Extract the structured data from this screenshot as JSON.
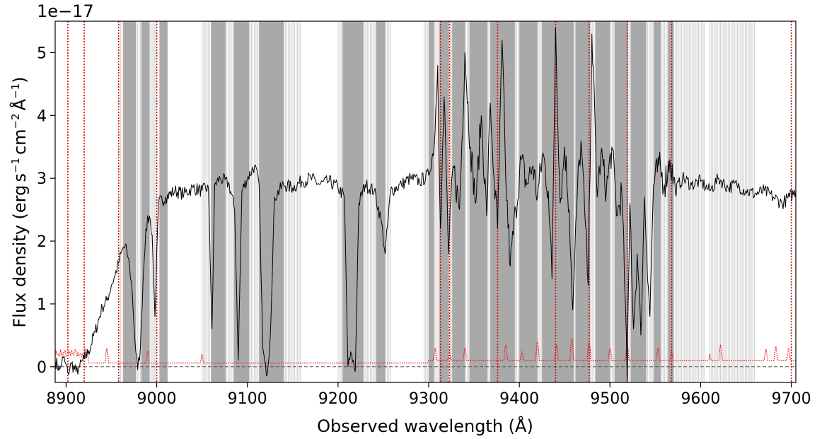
{
  "chart_data": {
    "type": "line",
    "title": "",
    "xlabel": "Observed wavelength (Å)",
    "ylabel": {
      "prefix": "Flux density (erg",
      "s": "s",
      "s_exp": "−1",
      "cm": "cm",
      "cm_exp": "−2",
      "ang": "Å",
      "ang_exp": "−1",
      "suffix": ")"
    },
    "y_offset_label": "1e−17",
    "xlim": [
      8888,
      9705
    ],
    "ylim": [
      -0.25,
      5.5
    ],
    "x_ticks": [
      8900,
      9000,
      9100,
      9200,
      9300,
      9400,
      9500,
      9600,
      9700
    ],
    "x_tick_labels": [
      "8900",
      "9000",
      "9100",
      "9200",
      "9300",
      "9400",
      "9500",
      "9600",
      "9700"
    ],
    "y_ticks": [
      0,
      1,
      2,
      3,
      4,
      5
    ],
    "y_tick_labels": [
      "0",
      "1",
      "2",
      "3",
      "4",
      "5"
    ],
    "grid": false,
    "legend": "none",
    "colors": {
      "flux": "#000000",
      "error": "#ee1111",
      "telluric_band": "#999999",
      "sky_line": "#dd0000",
      "zero_line": "#555555"
    },
    "gray_bands_dense": [
      [
        8963,
        8977
      ],
      [
        8983,
        8992
      ],
      [
        9003,
        9012
      ],
      [
        9060,
        9076
      ],
      [
        9085,
        9102
      ],
      [
        9113,
        9140
      ],
      [
        9205,
        9228
      ],
      [
        9242,
        9252
      ],
      [
        9300,
        9306
      ],
      [
        9312,
        9322
      ],
      [
        9326,
        9340
      ],
      [
        9345,
        9365
      ],
      [
        9368,
        9395
      ],
      [
        9400,
        9420
      ],
      [
        9425,
        9460
      ],
      [
        9462,
        9478
      ],
      [
        9484,
        9500
      ],
      [
        9505,
        9520
      ],
      [
        9523,
        9540
      ],
      [
        9548,
        9556
      ],
      [
        9564,
        9570
      ]
    ],
    "gray_bands_faint": [
      [
        8960,
        9000
      ],
      [
        9050,
        9160
      ],
      [
        9200,
        9258
      ],
      [
        9295,
        9605
      ],
      [
        9610,
        9660
      ]
    ],
    "sky_lines": [
      8902,
      8920,
      8958,
      9000,
      9313,
      9323,
      9376,
      9440,
      9477,
      9519,
      9568,
      9700
    ],
    "flux_series": {
      "name": "",
      "points": [
        [
          8888,
          0.1
        ],
        [
          8893,
          -0.05
        ],
        [
          8897,
          0.15
        ],
        [
          8902,
          -0.1
        ],
        [
          8906,
          0.05
        ],
        [
          8911,
          -0.08
        ],
        [
          8915,
          0.0
        ],
        [
          8920,
          0.12
        ],
        [
          8925,
          0.25
        ],
        [
          8932,
          0.55
        ],
        [
          8940,
          0.95
        ],
        [
          8945,
          1.05
        ],
        [
          8950,
          1.3
        ],
        [
          8954,
          1.45
        ],
        [
          8958,
          1.65
        ],
        [
          8963,
          1.9
        ],
        [
          8967,
          1.85
        ],
        [
          8970,
          1.6
        ],
        [
          8973,
          1.2
        ],
        [
          8976,
          0.4
        ],
        [
          8979,
          -0.05
        ],
        [
          8982,
          0.3
        ],
        [
          8985,
          1.4
        ],
        [
          8988,
          2.2
        ],
        [
          8992,
          2.4
        ],
        [
          8995,
          2.1
        ],
        [
          8998,
          0.8
        ],
        [
          9002,
          2.6
        ],
        [
          9010,
          2.7
        ],
        [
          9020,
          2.8
        ],
        [
          9030,
          2.75
        ],
        [
          9040,
          2.85
        ],
        [
          9050,
          2.8
        ],
        [
          9057,
          2.85
        ],
        [
          9061,
          0.6
        ],
        [
          9064,
          2.9
        ],
        [
          9070,
          3.0
        ],
        [
          9080,
          2.9
        ],
        [
          9086,
          2.5
        ],
        [
          9090,
          0.1
        ],
        [
          9094,
          2.8
        ],
        [
          9100,
          3.0
        ],
        [
          9108,
          3.2
        ],
        [
          9113,
          2.9
        ],
        [
          9117,
          0.3
        ],
        [
          9121,
          -0.15
        ],
        [
          9125,
          0.4
        ],
        [
          9130,
          2.7
        ],
        [
          9140,
          2.9
        ],
        [
          9150,
          2.85
        ],
        [
          9160,
          2.95
        ],
        [
          9170,
          3.0
        ],
        [
          9180,
          2.9
        ],
        [
          9190,
          2.95
        ],
        [
          9200,
          2.85
        ],
        [
          9207,
          2.7
        ],
        [
          9211,
          0.0
        ],
        [
          9215,
          0.2
        ],
        [
          9219,
          -0.08
        ],
        [
          9223,
          2.6
        ],
        [
          9230,
          2.9
        ],
        [
          9240,
          2.8
        ],
        [
          9248,
          2.3
        ],
        [
          9252,
          1.8
        ],
        [
          9258,
          2.8
        ],
        [
          9270,
          2.9
        ],
        [
          9280,
          3.0
        ],
        [
          9290,
          2.95
        ],
        [
          9300,
          3.05
        ],
        [
          9306,
          3.5
        ],
        [
          9310,
          4.8
        ],
        [
          9313,
          2.2
        ],
        [
          9317,
          4.3
        ],
        [
          9322,
          1.8
        ],
        [
          9327,
          3.2
        ],
        [
          9334,
          2.5
        ],
        [
          9340,
          5.0
        ],
        [
          9346,
          3.5
        ],
        [
          9352,
          2.6
        ],
        [
          9358,
          4.0
        ],
        [
          9364,
          2.4
        ],
        [
          9368,
          4.2
        ],
        [
          9372,
          3.0
        ],
        [
          9376,
          2.2
        ],
        [
          9381,
          5.2
        ],
        [
          9385,
          3.0
        ],
        [
          9390,
          1.6
        ],
        [
          9396,
          2.5
        ],
        [
          9402,
          3.3
        ],
        [
          9408,
          2.9
        ],
        [
          9415,
          3.2
        ],
        [
          9420,
          2.7
        ],
        [
          9426,
          3.4
        ],
        [
          9432,
          2.8
        ],
        [
          9436,
          1.4
        ],
        [
          9440,
          5.4
        ],
        [
          9445,
          2.6
        ],
        [
          9450,
          3.5
        ],
        [
          9455,
          2.5
        ],
        [
          9459,
          0.9
        ],
        [
          9464,
          2.8
        ],
        [
          9468,
          3.6
        ],
        [
          9472,
          2.5
        ],
        [
          9476,
          1.3
        ],
        [
          9480,
          5.3
        ],
        [
          9486,
          2.7
        ],
        [
          9490,
          3.4
        ],
        [
          9496,
          2.8
        ],
        [
          9502,
          3.5
        ],
        [
          9508,
          2.4
        ],
        [
          9513,
          2.8
        ],
        [
          9517,
          1.0
        ],
        [
          9519,
          -0.22
        ],
        [
          9522,
          2.6
        ],
        [
          9526,
          0.6
        ],
        [
          9530,
          1.8
        ],
        [
          9534,
          0.5
        ],
        [
          9538,
          2.7
        ],
        [
          9544,
          0.8
        ],
        [
          9548,
          2.9
        ],
        [
          9554,
          3.2
        ],
        [
          9560,
          2.9
        ],
        [
          9566,
          3.3
        ],
        [
          9572,
          2.8
        ],
        [
          9580,
          3.0
        ],
        [
          9590,
          2.9
        ],
        [
          9600,
          2.95
        ],
        [
          9610,
          2.8
        ],
        [
          9620,
          3.0
        ],
        [
          9630,
          2.85
        ],
        [
          9640,
          2.9
        ],
        [
          9650,
          2.8
        ],
        [
          9660,
          2.75
        ],
        [
          9670,
          2.8
        ],
        [
          9680,
          2.7
        ],
        [
          9690,
          2.6
        ],
        [
          9698,
          2.7
        ],
        [
          9705,
          2.8
        ]
      ]
    },
    "error_series": {
      "name": "",
      "baseline_low": 0.06,
      "baseline_high": 0.1,
      "spikes": [
        [
          8945,
          0.3
        ],
        [
          8990,
          0.25
        ],
        [
          9050,
          0.2
        ],
        [
          9307,
          0.3
        ],
        [
          9323,
          0.25
        ],
        [
          9340,
          0.3
        ],
        [
          9385,
          0.35
        ],
        [
          9403,
          0.25
        ],
        [
          9420,
          0.4
        ],
        [
          9441,
          0.35
        ],
        [
          9458,
          0.45
        ],
        [
          9477,
          0.4
        ],
        [
          9500,
          0.3
        ],
        [
          9519,
          0.35
        ],
        [
          9553,
          0.3
        ],
        [
          9568,
          0.25
        ],
        [
          9610,
          0.2
        ],
        [
          9622,
          0.35
        ],
        [
          9672,
          0.28
        ],
        [
          9683,
          0.32
        ],
        [
          9697,
          0.3
        ]
      ]
    }
  }
}
